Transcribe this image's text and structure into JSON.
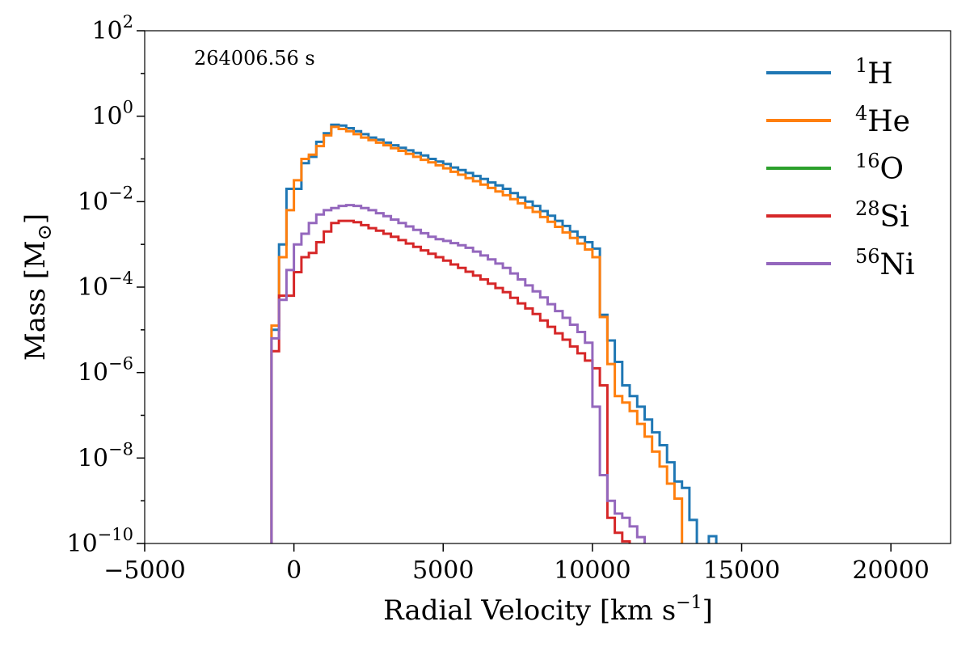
{
  "chart_data": {
    "type": "line",
    "step": true,
    "xlabel": "Radial Velocity [km s",
    "xlabel_sup": "−1",
    "xlabel_end": "]",
    "ylabel": "Mass [M",
    "ylabel_sub": "⊙",
    "ylabel_end": "]",
    "annotation": "264006.56 s",
    "xlim": [
      -5000,
      22000
    ],
    "ylim_exp": [
      -10,
      2
    ],
    "yscale": "log",
    "xticks": [
      {
        "value": -5000,
        "label": "−5000"
      },
      {
        "value": 0,
        "label": "0"
      },
      {
        "value": 5000,
        "label": "5000"
      },
      {
        "value": 10000,
        "label": "10000"
      },
      {
        "value": 15000,
        "label": "15000"
      },
      {
        "value": 20000,
        "label": "20000"
      }
    ],
    "yticks": [
      {
        "exp": 2,
        "base": "10",
        "sup": "2"
      },
      {
        "exp": 0,
        "base": "10",
        "sup": "0"
      },
      {
        "exp": -2,
        "base": "10",
        "sup": "−2"
      },
      {
        "exp": -4,
        "base": "10",
        "sup": "−4"
      },
      {
        "exp": -6,
        "base": "10",
        "sup": "−6"
      },
      {
        "exp": -8,
        "base": "10",
        "sup": "−8"
      },
      {
        "exp": -10,
        "base": "10",
        "sup": "−10"
      }
    ],
    "legend_position": "upper-right",
    "series": [
      {
        "name": "1H",
        "sup": "1",
        "element": "H",
        "color": "#1f77b4",
        "points": [
          [
            -750,
            -10.3
          ],
          [
            -750,
            -5.0
          ],
          [
            -500,
            -3.0
          ],
          [
            -250,
            -1.7
          ],
          [
            0,
            -1.7
          ],
          [
            250,
            -1.1
          ],
          [
            500,
            -0.95
          ],
          [
            750,
            -0.6
          ],
          [
            1000,
            -0.4
          ],
          [
            1250,
            -0.2
          ],
          [
            1500,
            -0.22
          ],
          [
            1750,
            -0.28
          ],
          [
            2000,
            -0.35
          ],
          [
            2250,
            -0.42
          ],
          [
            2500,
            -0.5
          ],
          [
            2750,
            -0.55
          ],
          [
            3000,
            -0.62
          ],
          [
            3250,
            -0.68
          ],
          [
            3500,
            -0.74
          ],
          [
            3750,
            -0.8
          ],
          [
            4000,
            -0.86
          ],
          [
            4250,
            -0.92
          ],
          [
            4500,
            -1.0
          ],
          [
            4750,
            -1.06
          ],
          [
            5000,
            -1.12
          ],
          [
            5250,
            -1.2
          ],
          [
            5500,
            -1.26
          ],
          [
            5750,
            -1.33
          ],
          [
            6000,
            -1.4
          ],
          [
            6250,
            -1.47
          ],
          [
            6500,
            -1.55
          ],
          [
            6750,
            -1.62
          ],
          [
            7000,
            -1.7
          ],
          [
            7250,
            -1.8
          ],
          [
            7500,
            -1.9
          ],
          [
            7750,
            -2.0
          ],
          [
            8000,
            -2.1
          ],
          [
            8250,
            -2.22
          ],
          [
            8500,
            -2.33
          ],
          [
            8750,
            -2.45
          ],
          [
            9000,
            -2.57
          ],
          [
            9250,
            -2.7
          ],
          [
            9500,
            -2.83
          ],
          [
            9750,
            -2.95
          ],
          [
            10000,
            -3.1
          ],
          [
            10250,
            -4.65
          ],
          [
            10500,
            -5.25
          ],
          [
            10750,
            -5.75
          ],
          [
            11000,
            -6.3
          ],
          [
            11250,
            -6.55
          ],
          [
            11500,
            -6.8
          ],
          [
            11750,
            -7.1
          ],
          [
            12000,
            -7.4
          ],
          [
            12250,
            -7.7
          ],
          [
            12500,
            -8.1
          ],
          [
            12750,
            -8.55
          ],
          [
            13000,
            -8.7
          ],
          [
            13250,
            -9.45
          ],
          [
            13500,
            -10.4
          ],
          [
            13750,
            -10.4
          ],
          [
            13900,
            -10.4
          ],
          [
            13900,
            -9.83
          ],
          [
            14150,
            -9.83
          ],
          [
            14150,
            -10.4
          ]
        ]
      },
      {
        "name": "4He",
        "sup": "4",
        "element": "He",
        "color": "#ff7f0e",
        "points": [
          [
            -750,
            -10.3
          ],
          [
            -750,
            -4.9
          ],
          [
            -500,
            -4.9
          ],
          [
            -500,
            -3.3
          ],
          [
            -250,
            -2.2
          ],
          [
            0,
            -1.5
          ],
          [
            250,
            -1.0
          ],
          [
            500,
            -0.9
          ],
          [
            750,
            -0.7
          ],
          [
            1000,
            -0.45
          ],
          [
            1250,
            -0.25
          ],
          [
            1500,
            -0.3
          ],
          [
            1750,
            -0.35
          ],
          [
            2000,
            -0.42
          ],
          [
            2250,
            -0.5
          ],
          [
            2500,
            -0.56
          ],
          [
            2750,
            -0.62
          ],
          [
            3000,
            -0.68
          ],
          [
            3250,
            -0.75
          ],
          [
            3500,
            -0.81
          ],
          [
            3750,
            -0.88
          ],
          [
            4000,
            -0.95
          ],
          [
            4250,
            -1.02
          ],
          [
            4500,
            -1.08
          ],
          [
            4750,
            -1.15
          ],
          [
            5000,
            -1.22
          ],
          [
            5250,
            -1.3
          ],
          [
            5500,
            -1.37
          ],
          [
            5750,
            -1.45
          ],
          [
            6000,
            -1.52
          ],
          [
            6250,
            -1.6
          ],
          [
            6500,
            -1.68
          ],
          [
            6750,
            -1.76
          ],
          [
            7000,
            -1.85
          ],
          [
            7250,
            -1.94
          ],
          [
            7500,
            -2.04
          ],
          [
            7750,
            -2.14
          ],
          [
            8000,
            -2.24
          ],
          [
            8250,
            -2.36
          ],
          [
            8500,
            -2.47
          ],
          [
            8750,
            -2.59
          ],
          [
            9000,
            -2.72
          ],
          [
            9250,
            -2.85
          ],
          [
            9500,
            -2.98
          ],
          [
            9750,
            -3.12
          ],
          [
            10000,
            -3.3
          ],
          [
            10250,
            -4.7
          ],
          [
            10500,
            -5.8
          ],
          [
            10750,
            -6.55
          ],
          [
            11000,
            -6.7
          ],
          [
            11250,
            -6.9
          ],
          [
            11500,
            -7.2
          ],
          [
            11750,
            -7.5
          ],
          [
            12000,
            -7.85
          ],
          [
            12250,
            -8.2
          ],
          [
            12500,
            -8.6
          ],
          [
            12750,
            -8.95
          ],
          [
            13000,
            -10.4
          ]
        ]
      },
      {
        "name": "16O",
        "sup": "16",
        "element": "O",
        "color": "#2ca02c",
        "points": []
      },
      {
        "name": "28Si",
        "sup": "28",
        "element": "Si",
        "color": "#d62728",
        "points": [
          [
            -750,
            -10.3
          ],
          [
            -750,
            -5.5
          ],
          [
            -500,
            -5.5
          ],
          [
            -500,
            -4.2
          ],
          [
            -250,
            -4.2
          ],
          [
            0,
            -3.65
          ],
          [
            250,
            -3.3
          ],
          [
            500,
            -3.2
          ],
          [
            750,
            -2.95
          ],
          [
            1000,
            -2.7
          ],
          [
            1250,
            -2.5
          ],
          [
            1500,
            -2.45
          ],
          [
            1750,
            -2.45
          ],
          [
            2000,
            -2.48
          ],
          [
            2250,
            -2.55
          ],
          [
            2500,
            -2.62
          ],
          [
            2750,
            -2.68
          ],
          [
            3000,
            -2.75
          ],
          [
            3250,
            -2.82
          ],
          [
            3500,
            -2.9
          ],
          [
            3750,
            -2.98
          ],
          [
            4000,
            -3.06
          ],
          [
            4250,
            -3.14
          ],
          [
            4500,
            -3.22
          ],
          [
            4750,
            -3.3
          ],
          [
            5000,
            -3.38
          ],
          [
            5250,
            -3.47
          ],
          [
            5500,
            -3.55
          ],
          [
            5750,
            -3.64
          ],
          [
            6000,
            -3.73
          ],
          [
            6250,
            -3.82
          ],
          [
            6500,
            -3.92
          ],
          [
            6750,
            -4.02
          ],
          [
            7000,
            -4.12
          ],
          [
            7250,
            -4.25
          ],
          [
            7500,
            -4.38
          ],
          [
            7750,
            -4.5
          ],
          [
            8000,
            -4.63
          ],
          [
            8250,
            -4.78
          ],
          [
            8500,
            -4.93
          ],
          [
            8750,
            -5.08
          ],
          [
            9000,
            -5.23
          ],
          [
            9250,
            -5.39
          ],
          [
            9500,
            -5.55
          ],
          [
            9750,
            -5.72
          ],
          [
            10000,
            -5.9
          ],
          [
            10250,
            -6.3
          ],
          [
            10500,
            -9.4
          ],
          [
            10750,
            -9.75
          ],
          [
            11000,
            -9.95
          ],
          [
            11250,
            -10.15
          ],
          [
            11500,
            -10.4
          ],
          [
            11750,
            -10.4
          ]
        ]
      },
      {
        "name": "56Ni",
        "sup": "56",
        "element": "Ni",
        "color": "#9467bd",
        "points": [
          [
            -750,
            -10.3
          ],
          [
            -750,
            -7.3
          ],
          [
            -750,
            -5.2
          ],
          [
            -500,
            -4.3
          ],
          [
            -250,
            -3.6
          ],
          [
            0,
            -3.0
          ],
          [
            250,
            -2.75
          ],
          [
            500,
            -2.5
          ],
          [
            750,
            -2.3
          ],
          [
            1000,
            -2.2
          ],
          [
            1250,
            -2.15
          ],
          [
            1500,
            -2.1
          ],
          [
            1750,
            -2.08
          ],
          [
            2000,
            -2.1
          ],
          [
            2250,
            -2.15
          ],
          [
            2500,
            -2.2
          ],
          [
            2750,
            -2.27
          ],
          [
            3000,
            -2.34
          ],
          [
            3250,
            -2.42
          ],
          [
            3500,
            -2.5
          ],
          [
            3750,
            -2.58
          ],
          [
            4000,
            -2.66
          ],
          [
            4250,
            -2.74
          ],
          [
            4500,
            -2.82
          ],
          [
            4750,
            -2.88
          ],
          [
            5000,
            -2.92
          ],
          [
            5250,
            -2.97
          ],
          [
            5500,
            -3.02
          ],
          [
            5750,
            -3.08
          ],
          [
            6000,
            -3.17
          ],
          [
            6250,
            -3.26
          ],
          [
            6500,
            -3.35
          ],
          [
            6750,
            -3.45
          ],
          [
            7000,
            -3.55
          ],
          [
            7250,
            -3.68
          ],
          [
            7500,
            -3.82
          ],
          [
            7750,
            -3.96
          ],
          [
            8000,
            -4.1
          ],
          [
            8250,
            -4.24
          ],
          [
            8500,
            -4.4
          ],
          [
            8750,
            -4.56
          ],
          [
            9000,
            -4.72
          ],
          [
            9250,
            -4.88
          ],
          [
            9500,
            -5.05
          ],
          [
            9750,
            -5.3
          ],
          [
            10000,
            -6.8
          ],
          [
            10250,
            -8.4
          ],
          [
            10500,
            -9.0
          ],
          [
            10750,
            -9.3
          ],
          [
            11000,
            -9.4
          ],
          [
            11250,
            -9.6
          ],
          [
            11500,
            -9.85
          ],
          [
            11750,
            -10.1
          ],
          [
            12000,
            -10.4
          ]
        ]
      }
    ]
  }
}
